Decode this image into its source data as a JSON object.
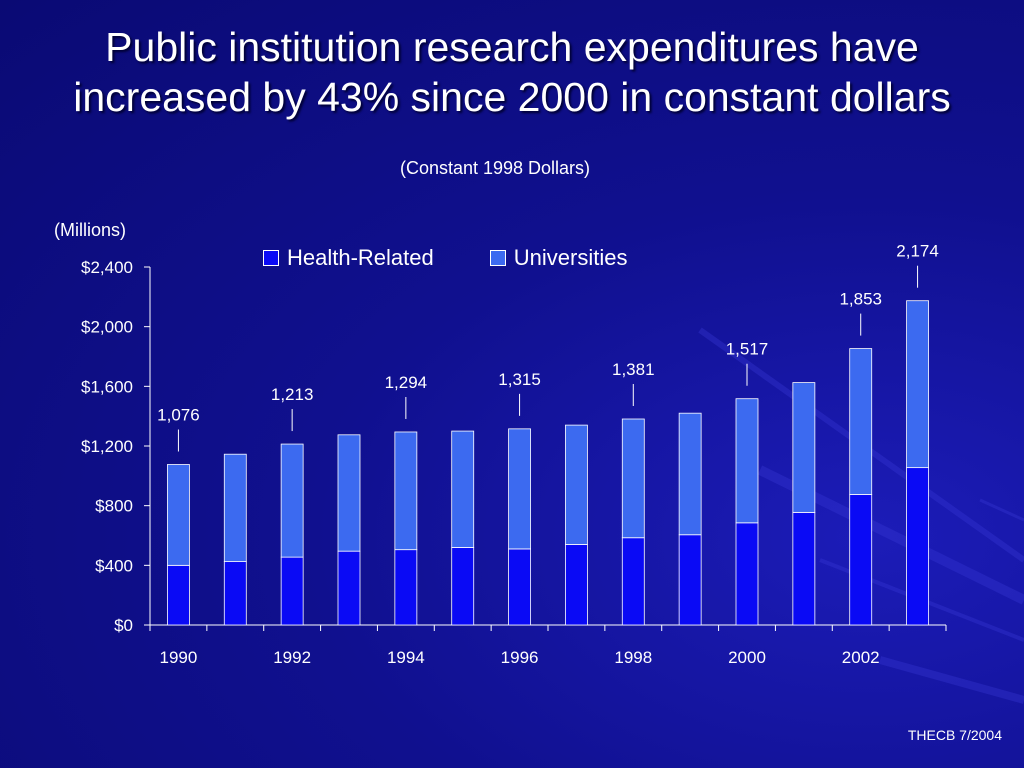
{
  "slide": {
    "title_line1": "Public institution research expenditures have",
    "title_line2": "increased by 43% since 2000 in constant dollars",
    "subtitle": "(Constant 1998 Dollars)",
    "units": "(Millions)",
    "footer": "THECB 7/2004"
  },
  "colors": {
    "health": "#0a0af5",
    "universities": "#3c6af0",
    "axis": "#ffffff"
  },
  "chart_data": {
    "type": "bar",
    "stacked": true,
    "categories": [
      "1990",
      "1991",
      "1992",
      "1993",
      "1994",
      "1995",
      "1996",
      "1997",
      "1998",
      "1999",
      "2000",
      "2001",
      "2002",
      "2003"
    ],
    "x_tick_labels": [
      "1990",
      "",
      "1992",
      "",
      "1994",
      "",
      "1996",
      "",
      "1998",
      "",
      "2000",
      "",
      "2002",
      ""
    ],
    "series": [
      {
        "name": "Health-Related",
        "color": "#0a0af5",
        "values": [
          400,
          425,
          455,
          495,
          505,
          520,
          510,
          540,
          585,
          605,
          685,
          755,
          875,
          1055
        ]
      },
      {
        "name": "Universities",
        "color": "#3c6af0",
        "values": [
          676,
          720,
          758,
          780,
          789,
          780,
          805,
          800,
          796,
          815,
          832,
          870,
          978,
          1119
        ]
      }
    ],
    "totals": [
      1076,
      1145,
      1213,
      1275,
      1294,
      1300,
      1315,
      1340,
      1381,
      1420,
      1517,
      1625,
      1853,
      2174
    ],
    "data_labels": [
      "1,076",
      "",
      "1,213",
      "",
      "1,294",
      "",
      "1,315",
      "",
      "1,381",
      "",
      "1,517",
      "",
      "1,853",
      "2,174"
    ],
    "ylim": [
      0,
      2400
    ],
    "yticks": [
      0,
      400,
      800,
      1200,
      1600,
      2000,
      2400
    ],
    "ytick_labels": [
      "$0",
      "$400",
      "$800",
      "$1,200",
      "$1,600",
      "$2,000",
      "$2,400"
    ],
    "legend_position": "top-center"
  }
}
